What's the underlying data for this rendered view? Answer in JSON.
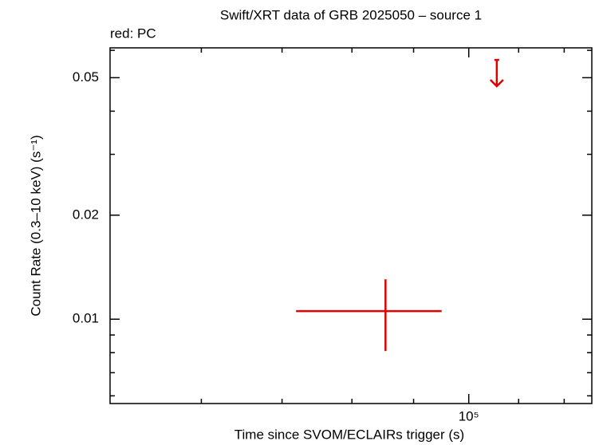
{
  "chart_data": {
    "type": "scatter",
    "title": "Swift/XRT data of GRB 2025050 – source 1",
    "legend_text": "red: PC",
    "x_label": "Time since SVOM/ECLAIRs trigger (s)",
    "y_label": "Count Rate (0.3–10 keV) (s⁻¹)",
    "log_x": true,
    "log_y": true,
    "xlim": [
      50400,
      126500
    ],
    "ylim": [
      0.0057,
      0.061
    ],
    "xticks": [
      {
        "value": 100000,
        "label": "10⁵"
      }
    ],
    "xminorticks": [
      60000,
      70000,
      80000,
      90000,
      110000,
      120000
    ],
    "yticks": [
      0.01,
      0.02,
      0.05
    ],
    "yminorticks": [
      0.006,
      0.007,
      0.008,
      0.009,
      0.03,
      0.04,
      0.06
    ],
    "color": "#e00000",
    "points": {
      "x": [
        85300
      ],
      "xerr_low": [
        71900
      ],
      "xerr_high": [
        94950
      ],
      "y": [
        0.01055
      ],
      "yerr_low": [
        0.00809
      ],
      "yerr_high": [
        0.01304
      ]
    },
    "upper_limits": {
      "x": [
        105500
      ],
      "y": [
        0.0563
      ]
    }
  }
}
